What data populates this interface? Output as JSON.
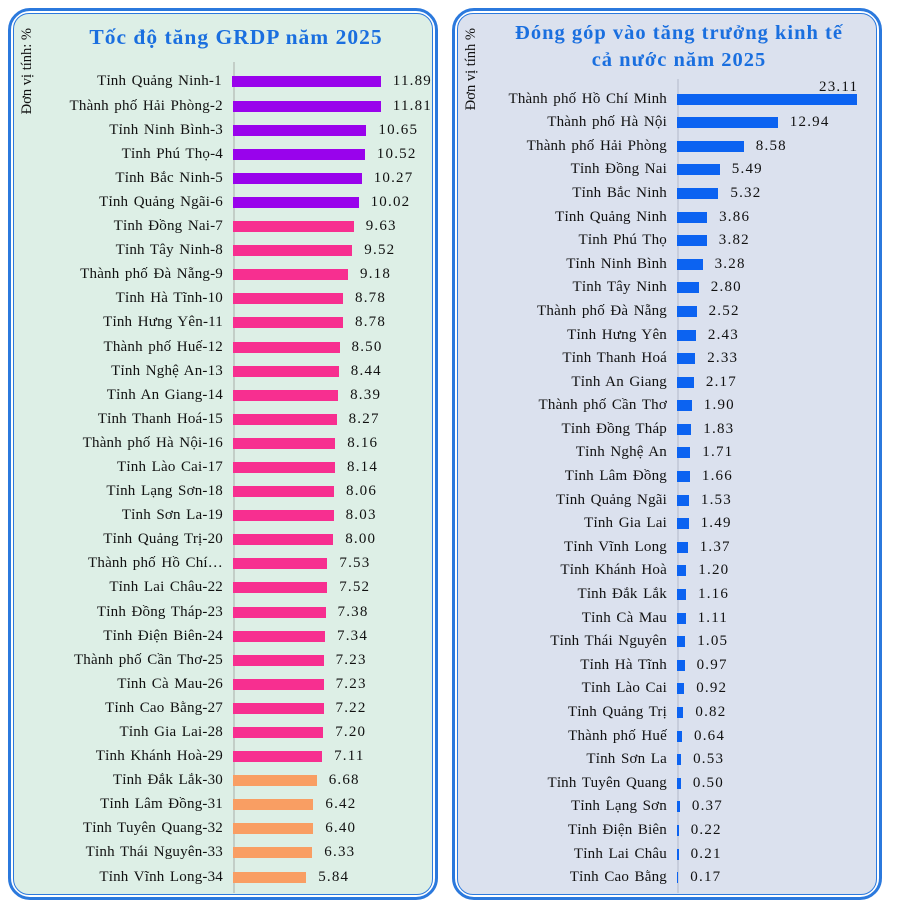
{
  "panels": {
    "left": {
      "bg_color": "#ddefe6",
      "border_color": "#2b79dd",
      "title_color": "#1a6fdf",
      "axis_color": "#c3cec7"
    },
    "right": {
      "bg_color": "#dbe1ee",
      "border_color": "#2b79dd",
      "title_color": "#1a6fdf",
      "axis_color": "#c7cddc"
    }
  },
  "chart_data": [
    {
      "type": "bar",
      "orientation": "horizontal",
      "title": "Tốc độ tăng GRDP năm 2025",
      "unit": "Đơn vị tính: %",
      "value_range": [
        0,
        12
      ],
      "grid": false,
      "legend": false,
      "categories": [
        "Tỉnh Quảng Ninh-1",
        "Thành phố Hải Phòng-2",
        "Tỉnh Ninh Bình-3",
        "Tỉnh Phú Thọ-4",
        "Tỉnh Bắc Ninh-5",
        "Tỉnh Quảng Ngãi-6",
        "Tỉnh Đồng Nai-7",
        "Tỉnh Tây Ninh-8",
        "Thành phố Đà Nẵng-9",
        "Tỉnh Hà Tĩnh-10",
        "Tỉnh Hưng Yên-11",
        "Thành phố Huế-12",
        "Tỉnh Nghệ An-13",
        "Tỉnh An Giang-14",
        "Tỉnh Thanh Hoá-15",
        "Thành phố Hà Nội-16",
        "Tỉnh Lào Cai-17",
        "Tỉnh Lạng Sơn-18",
        "Tỉnh Sơn La-19",
        "Tỉnh Quảng Trị-20",
        "Thành phố Hồ Chí…",
        "Tỉnh Lai Châu-22",
        "Tỉnh Đồng Tháp-23",
        "Tỉnh Điện Biên-24",
        "Thành phố Cần Thơ-25",
        "Tỉnh Cà Mau-26",
        "Tỉnh Cao Bằng-27",
        "Tỉnh Gia Lai-28",
        "Tỉnh Khánh Hoà-29",
        "Tỉnh Đắk Lắk-30",
        "Tỉnh Lâm Đồng-31",
        "Tỉnh Tuyên Quang-32",
        "Tỉnh Thái Nguyên-33",
        "Tỉnh Vĩnh Long-34"
      ],
      "values": [
        11.89,
        11.81,
        10.65,
        10.52,
        10.27,
        10.02,
        9.63,
        9.52,
        9.18,
        8.78,
        8.78,
        8.5,
        8.44,
        8.39,
        8.27,
        8.16,
        8.14,
        8.06,
        8.03,
        8.0,
        7.53,
        7.52,
        7.38,
        7.34,
        7.23,
        7.23,
        7.22,
        7.2,
        7.11,
        6.68,
        6.42,
        6.4,
        6.33,
        5.84
      ],
      "value_labels": [
        "11.89",
        "11.81",
        "10.65",
        "10.52",
        "10.27",
        "10.02",
        "9.63",
        "9.52",
        "9.18",
        "8.78",
        "8.78",
        "8.50",
        "8.44",
        "8.39",
        "8.27",
        "8.16",
        "8.14",
        "8.06",
        "8.03",
        "8.00",
        "7.53",
        "7.52",
        "7.38",
        "7.34",
        "7.23",
        "7.23",
        "7.22",
        "7.20",
        "7.11",
        "6.68",
        "6.42",
        "6.40",
        "6.33",
        "5.84"
      ],
      "bar_colors": [
        "#9903ec",
        "#9903ec",
        "#9903ec",
        "#9903ec",
        "#9903ec",
        "#9903ec",
        "#f72f90",
        "#f72f90",
        "#f72f90",
        "#f72f90",
        "#f72f90",
        "#f72f90",
        "#f72f90",
        "#f72f90",
        "#f72f90",
        "#f72f90",
        "#f72f90",
        "#f72f90",
        "#f72f90",
        "#f72f90",
        "#f72f90",
        "#f72f90",
        "#f72f90",
        "#f72f90",
        "#f72f90",
        "#f72f90",
        "#f72f90",
        "#f72f90",
        "#f72f90",
        "#f99e63",
        "#f99e63",
        "#f99e63",
        "#f99e63",
        "#f99e63"
      ]
    },
    {
      "type": "bar",
      "orientation": "horizontal",
      "title": "Đóng góp vào tăng trưởng kinh tế cả nước năm 2025",
      "title_lines": [
        "Đóng góp vào tăng trưởng kinh tế",
        "cả nước năm 2025"
      ],
      "unit": "Đơn vị tính %",
      "value_range": [
        0,
        24
      ],
      "grid": false,
      "legend": false,
      "first_value_label_position": "above",
      "categories": [
        "Thành phố Hồ Chí Minh",
        "Thành phố Hà Nội",
        "Thành phố Hải Phòng",
        "Tỉnh Đồng Nai",
        "Tỉnh Bắc Ninh",
        "Tỉnh Quảng Ninh",
        "Tỉnh Phú Thọ",
        "Tỉnh Ninh Bình",
        "Tỉnh Tây Ninh",
        "Thành phố Đà Nẵng",
        "Tỉnh Hưng Yên",
        "Tỉnh Thanh Hoá",
        "Tỉnh An Giang",
        "Thành phố Cần Thơ",
        "Tỉnh Đồng Tháp",
        "Tỉnh Nghệ An",
        "Tỉnh Lâm Đồng",
        "Tỉnh Quảng Ngãi",
        "Tỉnh Gia Lai",
        "Tỉnh Vĩnh Long",
        "Tỉnh Khánh Hoà",
        "Tỉnh Đắk Lắk",
        "Tỉnh Cà Mau",
        "Tỉnh Thái Nguyên",
        "Tỉnh Hà Tĩnh",
        "Tỉnh Lào Cai",
        "Tỉnh Quảng Trị",
        "Thành phố Huế",
        "Tỉnh Sơn La",
        "Tỉnh Tuyên Quang",
        "Tỉnh Lạng Sơn",
        "Tỉnh Điện Biên",
        "Tỉnh Lai Châu",
        "Tỉnh Cao Bằng"
      ],
      "values": [
        23.11,
        12.94,
        8.58,
        5.49,
        5.32,
        3.86,
        3.82,
        3.28,
        2.8,
        2.52,
        2.43,
        2.33,
        2.17,
        1.9,
        1.83,
        1.71,
        1.66,
        1.53,
        1.49,
        1.37,
        1.2,
        1.16,
        1.11,
        1.05,
        0.97,
        0.92,
        0.82,
        0.64,
        0.53,
        0.5,
        0.37,
        0.22,
        0.21,
        0.17
      ],
      "value_labels": [
        "23.11",
        "12.94",
        "8.58",
        "5.49",
        "5.32",
        "3.86",
        "3.82",
        "3.28",
        "2.80",
        "2.52",
        "2.43",
        "2.33",
        "2.17",
        "1.90",
        "1.83",
        "1.71",
        "1.66",
        "1.53",
        "1.49",
        "1.37",
        "1.20",
        "1.16",
        "1.11",
        "1.05",
        "0.97",
        "0.92",
        "0.82",
        "0.64",
        "0.53",
        "0.50",
        "0.37",
        "0.22",
        "0.21",
        "0.17"
      ],
      "bar_colors": [
        "#0c63f1",
        "#0c63f1",
        "#0c63f1",
        "#0c63f1",
        "#0c63f1",
        "#0c63f1",
        "#0c63f1",
        "#0c63f1",
        "#0c63f1",
        "#0c63f1",
        "#0c63f1",
        "#0c63f1",
        "#0c63f1",
        "#0c63f1",
        "#0c63f1",
        "#0c63f1",
        "#0c63f1",
        "#0c63f1",
        "#0c63f1",
        "#0c63f1",
        "#0c63f1",
        "#0c63f1",
        "#0c63f1",
        "#0c63f1",
        "#0c63f1",
        "#0c63f1",
        "#0c63f1",
        "#0c63f1",
        "#0c63f1",
        "#0c63f1",
        "#0c63f1",
        "#0c63f1",
        "#0c63f1",
        "#0c63f1"
      ]
    }
  ]
}
